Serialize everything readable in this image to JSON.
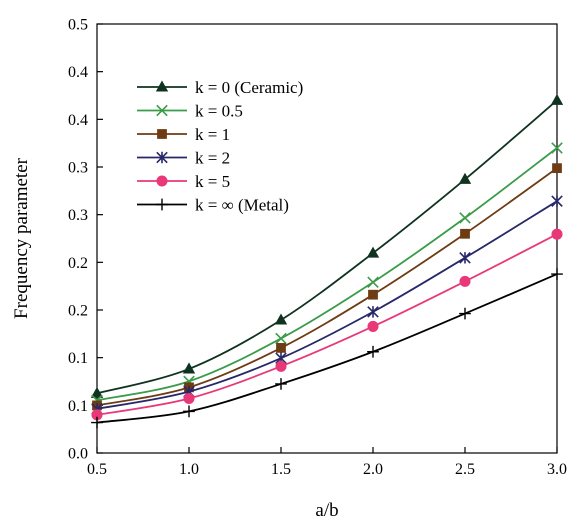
{
  "chart_data": {
    "type": "line",
    "title": "",
    "xlabel": "a/b",
    "ylabel": "Frequency parameter",
    "x": [
      0.5,
      1.0,
      1.5,
      2.0,
      2.5,
      3.0
    ],
    "xlim": [
      0.5,
      3.0
    ],
    "ylim": [
      0.0,
      0.5
    ],
    "x_ticks": [
      "0.5",
      "1.0",
      "1.5",
      "2.0",
      "2.5",
      "3.0"
    ],
    "y_ticks": [
      "0.0",
      "0.1",
      "0.1",
      "0.2",
      "0.2",
      "0.3",
      "0.3",
      "0.4",
      "0.4",
      "0.5"
    ],
    "grid": false,
    "legend_position": "upper-left",
    "series": [
      {
        "name": "k = 0 (Ceramic)",
        "color": "#0f3320",
        "marker": "triangle",
        "values": [
          0.0695,
          0.098,
          0.155,
          0.233,
          0.319,
          0.411
        ]
      },
      {
        "name": "k = 0.5",
        "color": "#3a9c48",
        "marker": "x",
        "values": [
          0.0615,
          0.0835,
          0.1335,
          0.199,
          0.274,
          0.3555
        ]
      },
      {
        "name": "k = 1",
        "color": "#6e3b13",
        "marker": "square",
        "values": [
          0.0555,
          0.0765,
          0.1225,
          0.1845,
          0.2555,
          0.332
        ]
      },
      {
        "name": "k = 2",
        "color": "#26286a",
        "marker": "asterisk",
        "values": [
          0.0515,
          0.0715,
          0.1105,
          0.1645,
          0.2275,
          0.2935
        ]
      },
      {
        "name": "k = 5",
        "color": "#e83878",
        "marker": "circle",
        "values": [
          0.0445,
          0.0635,
          0.101,
          0.1475,
          0.2,
          0.255
        ]
      },
      {
        "name": "k = ∞ (Metal)",
        "color": "#000000",
        "marker": "plus",
        "values": [
          0.0355,
          0.0485,
          0.0805,
          0.118,
          0.1625,
          0.2085
        ]
      }
    ]
  }
}
